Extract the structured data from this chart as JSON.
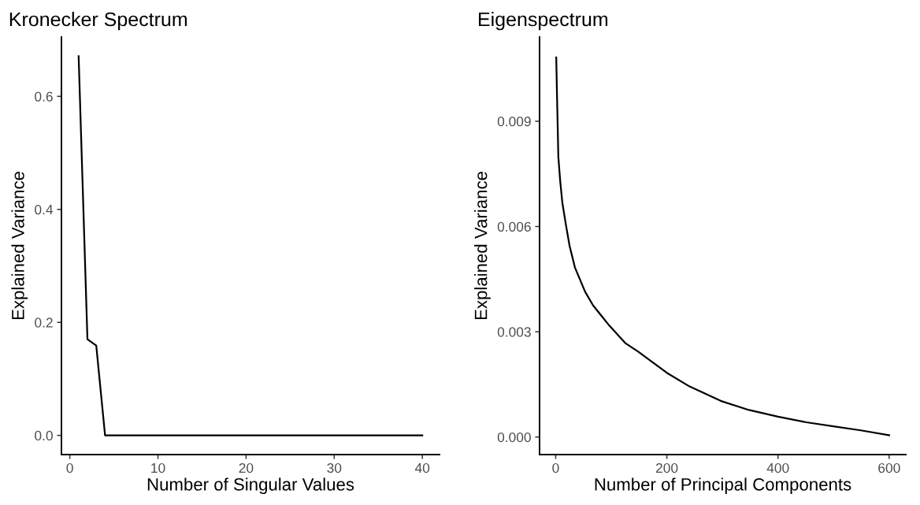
{
  "chart_data": [
    {
      "type": "line",
      "title": "Kronecker Spectrum",
      "xlabel": "Number of Singular Values",
      "ylabel": "Explained Variance",
      "x": [
        1,
        2,
        3,
        4,
        40
      ],
      "series": [
        {
          "color": "#000000",
          "values": [
            0.671,
            0.17,
            0.159,
            0,
            0
          ]
        }
      ],
      "xlim": [
        -0.95,
        41.95
      ],
      "xticks": [
        0,
        10,
        20,
        30,
        40
      ],
      "ylim": [
        -0.034,
        0.705
      ],
      "yticks": [
        {
          "value": 0,
          "label": "0.0"
        },
        {
          "value": 0.2,
          "label": "0.2"
        },
        {
          "value": 0.4,
          "label": "0.4"
        },
        {
          "value": 0.6,
          "label": "0.6"
        }
      ],
      "grid": false,
      "legend": false
    },
    {
      "type": "line",
      "title": "Eigenspectrum",
      "xlabel": "Number of Principal Components",
      "ylabel": "Explained Variance",
      "x": [
        1,
        2.4,
        4.8,
        8.2,
        12,
        18.3,
        25,
        34.7,
        53,
        67.4,
        96.3,
        125,
        148,
        200,
        241,
        297,
        348,
        400,
        451,
        502,
        549,
        600
      ],
      "series": [
        {
          "color": "#000000",
          "values": [
            0.01082,
            0.00975,
            0.00798,
            0.00729,
            0.00668,
            0.00606,
            0.00545,
            0.00483,
            0.00414,
            0.00375,
            0.00318,
            0.00268,
            0.00244,
            0.00183,
            0.00144,
            0.00103,
            0.00077,
            0.00058,
            0.00042,
            0.0003,
            0.00019,
            5e-05
          ]
        }
      ],
      "xlim": [
        -29,
        630
      ],
      "xticks": [
        0,
        200,
        400,
        600
      ],
      "ylim": [
        -0.0005,
        0.0114
      ],
      "yticks": [
        {
          "value": 0,
          "label": "0.000"
        },
        {
          "value": 0.003,
          "label": "0.003"
        },
        {
          "value": 0.006,
          "label": "0.006"
        },
        {
          "value": 0.009,
          "label": "0.009"
        }
      ],
      "grid": false,
      "legend": false
    }
  ]
}
